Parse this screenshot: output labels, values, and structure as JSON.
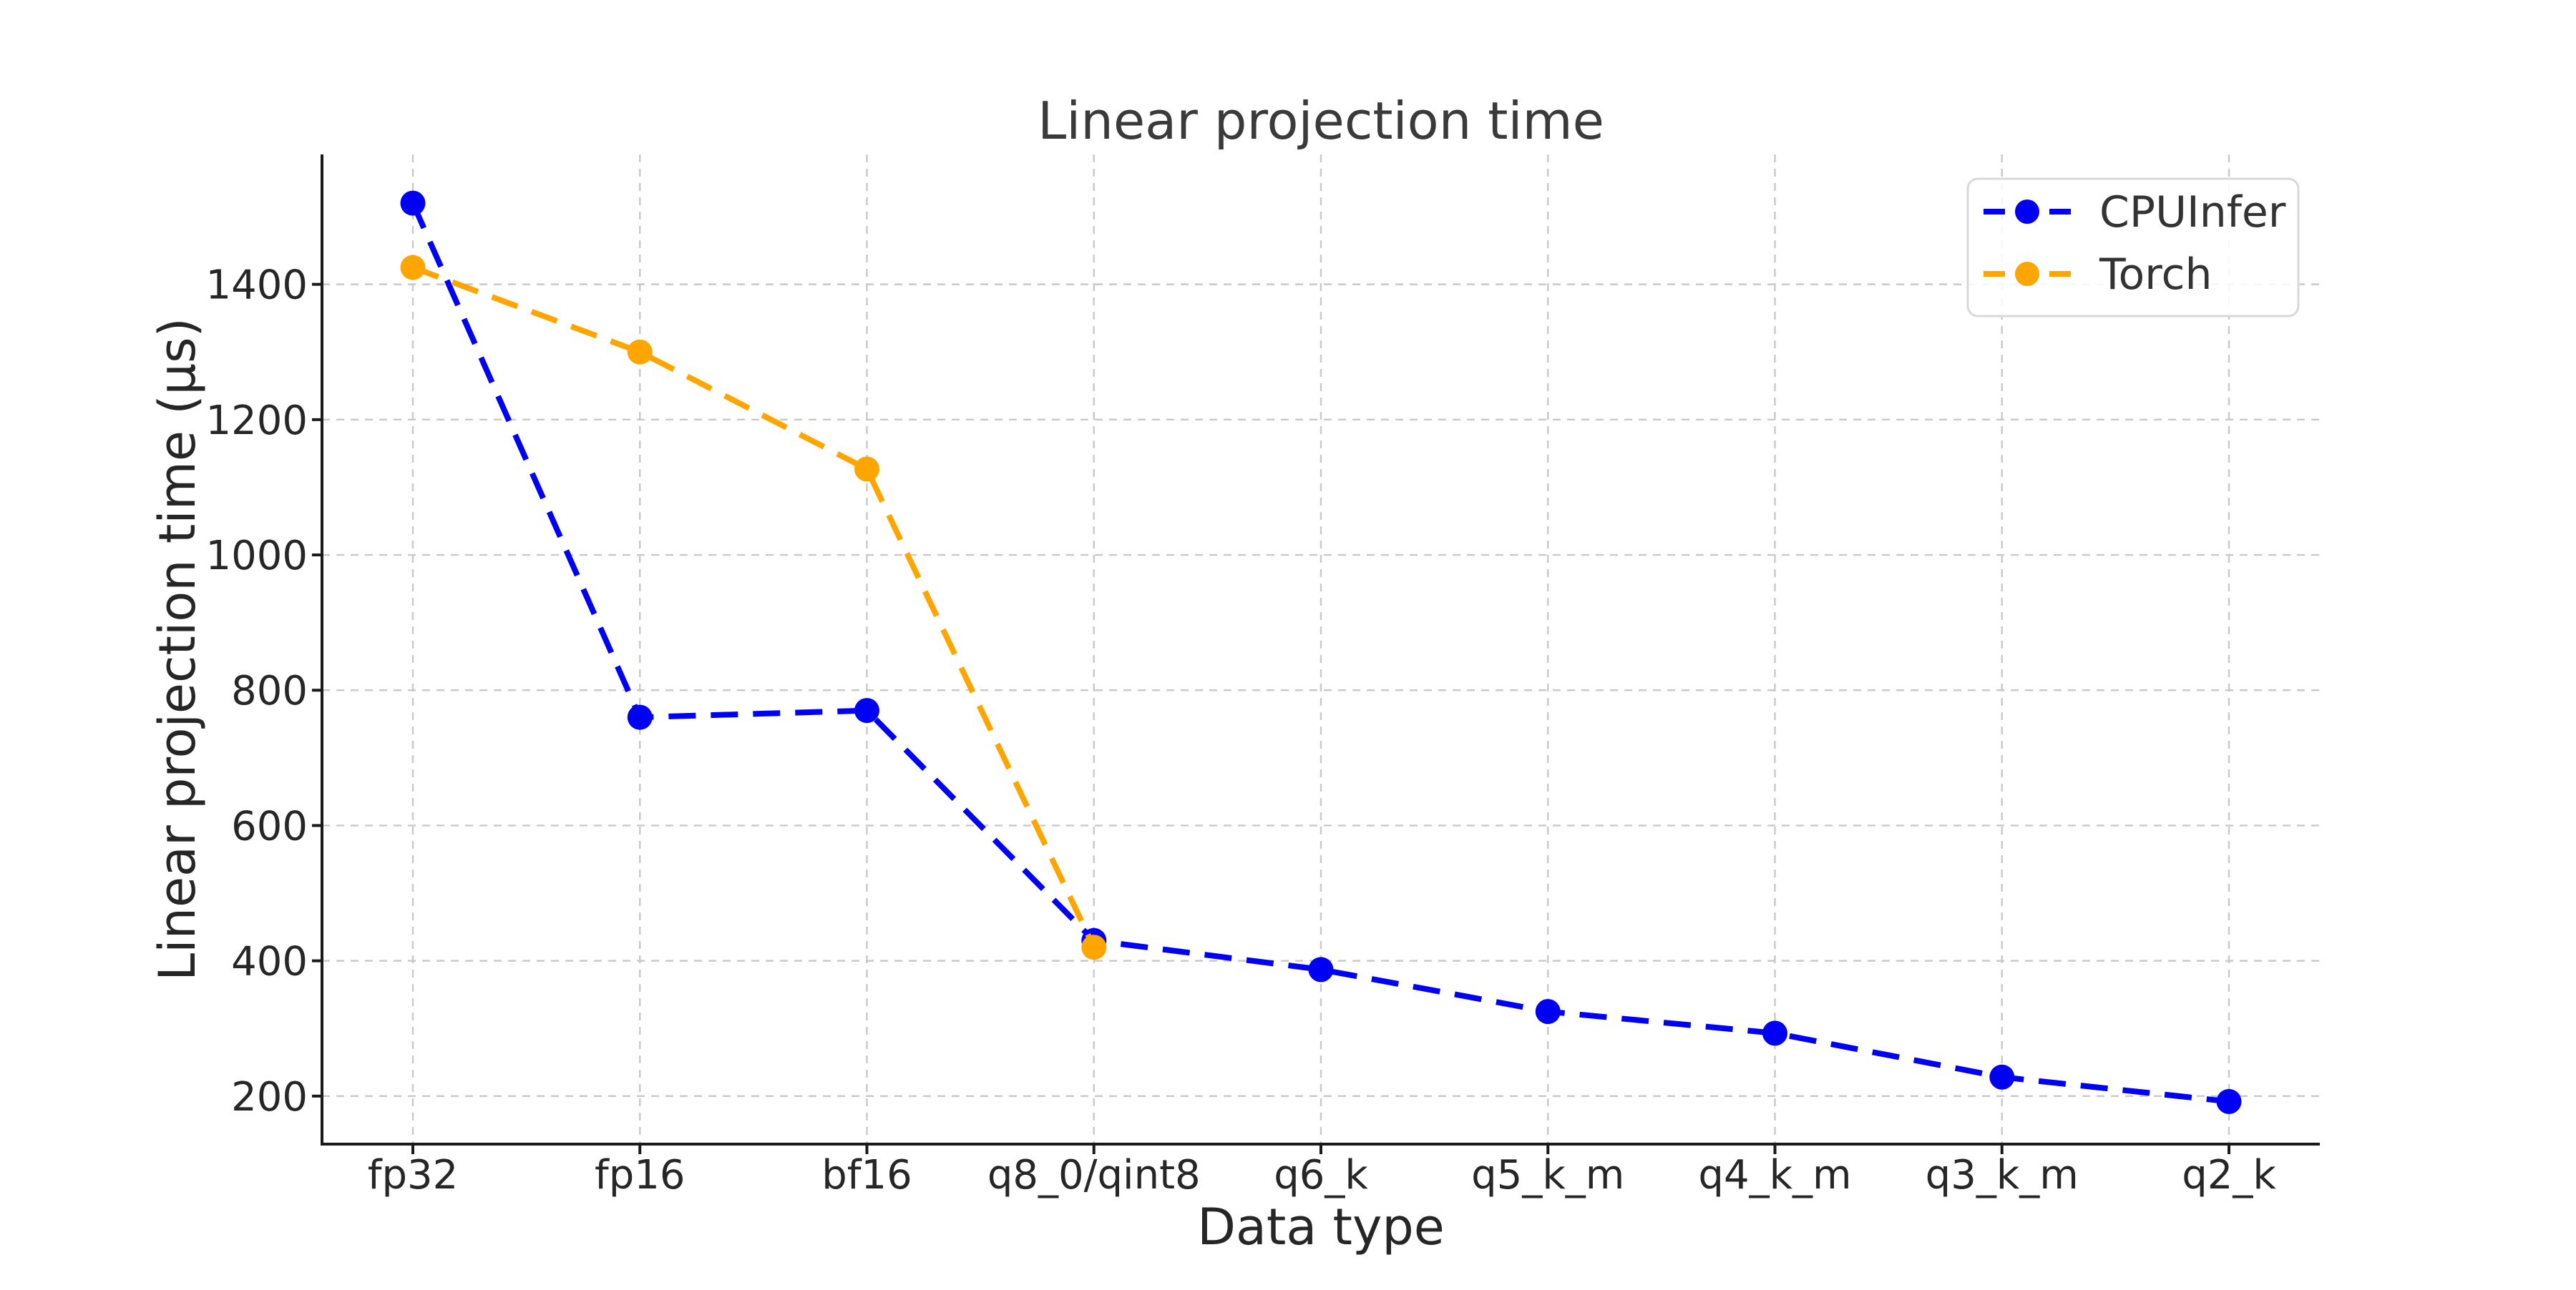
{
  "title": "Linear projection time",
  "colors": {
    "cpuinfer": "#0000f5",
    "torch": "#ffa500",
    "grid": "#c9c9c9",
    "spine": "#1a1a1a",
    "legend_border": "#d8d8d8",
    "text_dark": "#262626"
  },
  "legend": {
    "items": [
      {
        "label": "CPUInfer",
        "color": "#0000f5"
      },
      {
        "label": "Torch",
        "color": "#ffa500"
      }
    ]
  },
  "chart_data": {
    "type": "line",
    "title": "Linear projection time",
    "xlabel": "Data type",
    "ylabel": "Linear projection time (µs)",
    "categories": [
      "fp32",
      "fp16",
      "bf16",
      "q8_0/qint8",
      "q6_k",
      "q5_k_m",
      "q4_k_m",
      "q3_k_m",
      "q2_k"
    ],
    "series": [
      {
        "name": "CPUInfer",
        "color": "#0000f5",
        "values": [
          1520,
          760,
          770,
          430,
          387,
          325,
          293,
          228,
          192
        ]
      },
      {
        "name": "Torch",
        "color": "#ffa500",
        "values": [
          1425,
          1300,
          1127,
          420,
          null,
          null,
          null,
          null,
          null
        ]
      }
    ],
    "yticks": [
      200,
      400,
      600,
      800,
      1000,
      1200,
      1400
    ],
    "ylim": [
      129,
      1592
    ],
    "grid": true,
    "grid_linestyle": "dashed",
    "line_style": "dashed",
    "marker": "circle",
    "legend_position": "upper right"
  }
}
